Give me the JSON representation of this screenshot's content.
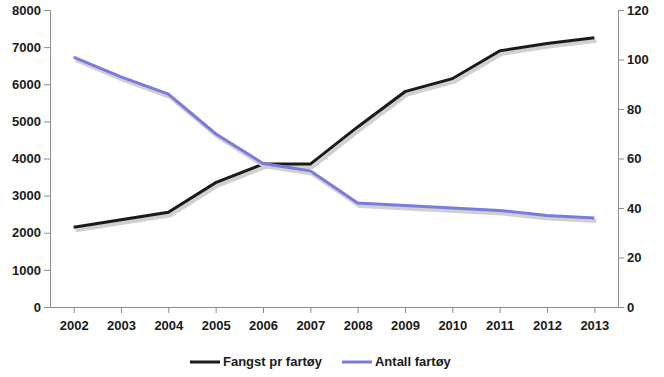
{
  "chart_data": {
    "type": "line",
    "categories": [
      "2002",
      "2003",
      "2004",
      "2005",
      "2006",
      "2007",
      "2008",
      "2009",
      "2010",
      "2011",
      "2012",
      "2013"
    ],
    "series": [
      {
        "name": "Fangst pr fartøy",
        "color": "#1a1a1a",
        "values": [
          2150,
          2350,
          2550,
          3350,
          3850,
          3850,
          4850,
          5800,
          6150,
          6900,
          7100,
          7250
        ]
      },
      {
        "name": "Antall fartøy",
        "color": "#7b7bdf",
        "axis": "y2",
        "values": [
          101,
          93,
          86,
          70,
          58,
          55,
          42,
          41,
          40,
          39,
          37,
          36
        ]
      }
    ],
    "ylim": [
      0,
      8000
    ],
    "yticks": [
      0,
      1000,
      2000,
      3000,
      4000,
      5000,
      6000,
      7000,
      8000
    ],
    "y2lim": [
      0,
      120
    ],
    "y2ticks": [
      0,
      20,
      40,
      60,
      80,
      100,
      120
    ],
    "grid": false,
    "legend": "bottom"
  }
}
